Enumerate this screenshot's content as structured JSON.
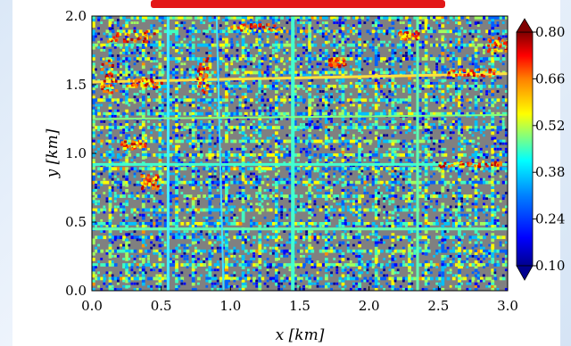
{
  "chart_data": {
    "type": "heatmap",
    "title": "",
    "xlabel": "x [km]",
    "ylabel": "y [km]",
    "xlim": [
      0.0,
      3.0
    ],
    "ylim": [
      0.0,
      2.0
    ],
    "x_ticks": [
      "0.0",
      "0.5",
      "1.0",
      "1.5",
      "2.0",
      "2.5",
      "3.0"
    ],
    "y_ticks": [
      "0.0",
      "0.5",
      "1.0",
      "1.5",
      "2.0"
    ],
    "colorbar": {
      "ticks": [
        "0.10",
        "0.24",
        "0.38",
        "0.52",
        "0.66",
        "0.80"
      ],
      "min": 0.1,
      "max": 0.8,
      "colormap": "jet",
      "extend": "both"
    },
    "building_color": "#808080",
    "colors": {
      "low": "#00008f",
      "mid_low": "#0080ff",
      "mid": "#40ffc0",
      "mid_high": "#ffff00",
      "high": "#ff4000",
      "max": "#800000"
    }
  }
}
